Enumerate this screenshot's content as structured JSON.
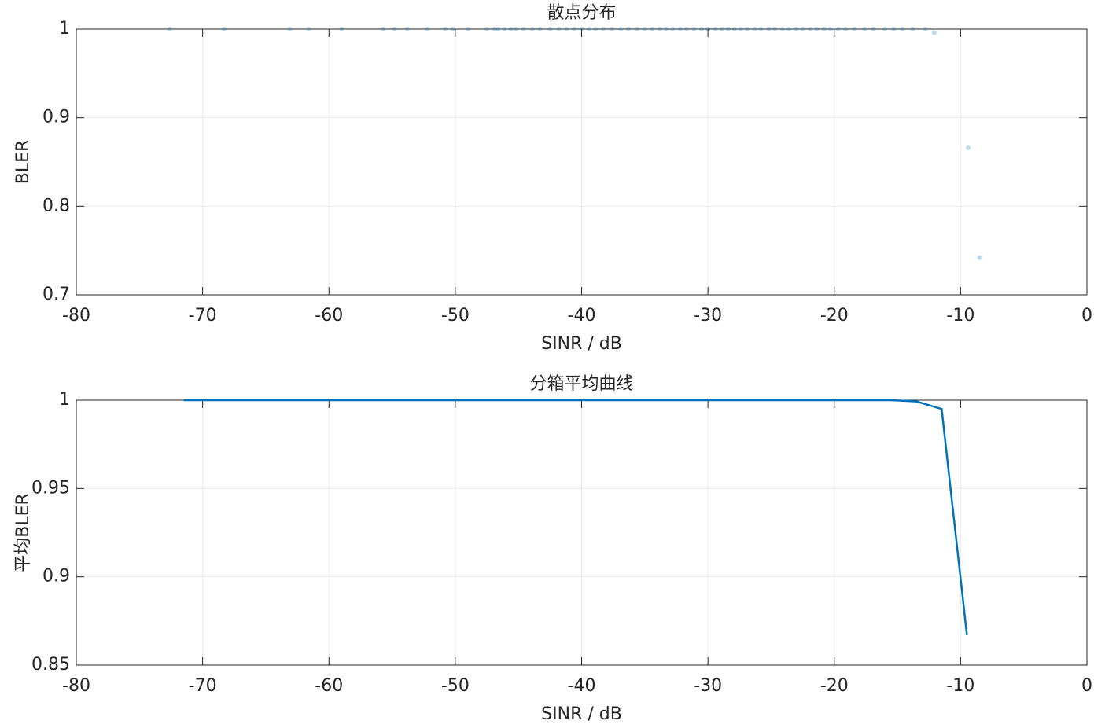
{
  "chart_data": [
    {
      "type": "scatter",
      "title": "散点分布",
      "xlabel": "SINR / dB",
      "ylabel": "BLER",
      "color": "#0072bd",
      "grid": true,
      "x": [
        -72.6,
        -68.3,
        -63.1,
        -61.6,
        -59.0,
        -55.7,
        -54.8,
        -53.8,
        -52.2,
        -50.8,
        -50.2,
        -49.0,
        -47.5,
        -46.9,
        -46.6,
        -46.1,
        -45.6,
        -45.2,
        -44.6,
        -43.9,
        -43.3,
        -42.5,
        -41.8,
        -41.2,
        -40.6,
        -40.0,
        -39.4,
        -38.9,
        -38.3,
        -37.6,
        -36.9,
        -36.3,
        -35.6,
        -35.0,
        -34.4,
        -33.8,
        -33.3,
        -32.8,
        -32.2,
        -31.7,
        -31.1,
        -30.5,
        -30.0,
        -29.4,
        -28.9,
        -28.4,
        -27.9,
        -27.4,
        -26.9,
        -26.3,
        -25.8,
        -25.2,
        -24.7,
        -24.1,
        -23.6,
        -23.0,
        -22.5,
        -21.9,
        -21.4,
        -20.8,
        -20.3,
        -19.7,
        -19.1,
        -18.4,
        -17.6,
        -16.9,
        -16.0,
        -15.3,
        -14.6,
        -13.8,
        -12.8,
        -12.1,
        -9.4,
        -8.5
      ],
      "values": [
        1,
        1,
        1,
        1,
        1,
        1,
        1,
        1,
        1,
        1,
        1,
        1,
        1,
        1,
        1,
        1,
        1,
        1,
        1,
        1,
        1,
        1,
        1,
        1,
        1,
        1,
        1,
        1,
        1,
        1,
        1,
        1,
        1,
        1,
        1,
        1,
        1,
        1,
        1,
        1,
        1,
        1,
        1,
        1,
        1,
        1,
        1,
        1,
        1,
        1,
        1,
        1,
        1,
        1,
        1,
        1,
        1,
        1,
        1,
        1,
        1,
        1,
        1,
        1,
        1,
        1,
        1,
        1,
        1,
        1,
        1,
        0.996,
        0.866,
        0.742
      ],
      "xlim": [
        -80,
        0
      ],
      "xticks": [
        -80,
        -70,
        -60,
        -50,
        -40,
        -30,
        -20,
        -10,
        0
      ],
      "ylim": [
        0.7,
        1
      ],
      "yticks": [
        0.7,
        0.8,
        0.9,
        1
      ]
    },
    {
      "type": "line",
      "title": "分箱平均曲线",
      "xlabel": "SINR / dB",
      "ylabel": "平均BLER",
      "color": "#0072bd",
      "grid": true,
      "x": [
        -71.5,
        -69.5,
        -67.5,
        -65.5,
        -63.5,
        -61.5,
        -59.5,
        -57.5,
        -55.5,
        -53.5,
        -51.5,
        -49.5,
        -47.5,
        -45.5,
        -43.5,
        -41.5,
        -39.5,
        -37.5,
        -35.5,
        -33.5,
        -31.5,
        -29.5,
        -27.5,
        -25.5,
        -23.5,
        -21.5,
        -19.5,
        -17.5,
        -15.5,
        -13.5,
        -11.5,
        -9.5
      ],
      "values": [
        1,
        1,
        1,
        1,
        1,
        1,
        1,
        1,
        1,
        1,
        1,
        1,
        1,
        1,
        1,
        1,
        1,
        1,
        1,
        1,
        1,
        1,
        1,
        1,
        1,
        1,
        1,
        1,
        1,
        0.9993,
        0.995,
        0.867
      ],
      "xlim": [
        -80,
        0
      ],
      "xticks": [
        -80,
        -70,
        -60,
        -50,
        -40,
        -30,
        -20,
        -10,
        0
      ],
      "ylim": [
        0.85,
        1
      ],
      "yticks": [
        0.85,
        0.9,
        0.95,
        1
      ]
    }
  ]
}
